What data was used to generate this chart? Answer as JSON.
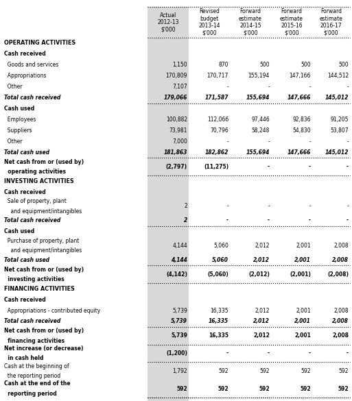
{
  "rows": [
    {
      "label": "OPERATING ACTIVITIES",
      "values": [
        "",
        "",
        "",
        "",
        ""
      ],
      "style": "section_bold"
    },
    {
      "label": "Cash received",
      "values": [
        "",
        "",
        "",
        "",
        ""
      ],
      "style": "subsection_bold"
    },
    {
      "label": "  Goods and services",
      "values": [
        "1,150",
        "870",
        "500",
        "500",
        "500"
      ],
      "style": "normal"
    },
    {
      "label": "  Appropriations",
      "values": [
        "170,809",
        "170,717",
        "155,194",
        "147,166",
        "144,512"
      ],
      "style": "normal"
    },
    {
      "label": "  Other",
      "values": [
        "7,107",
        "-",
        "-",
        "-",
        "-"
      ],
      "style": "normal"
    },
    {
      "label": "Total cash received",
      "values": [
        "179,066",
        "171,587",
        "155,694",
        "147,666",
        "145,012"
      ],
      "style": "total_bold_italic"
    },
    {
      "label": "Cash used",
      "values": [
        "",
        "",
        "",
        "",
        ""
      ],
      "style": "subsection_bold"
    },
    {
      "label": "  Employees",
      "values": [
        "100,882",
        "112,066",
        "97,446",
        "92,836",
        "91,205"
      ],
      "style": "normal"
    },
    {
      "label": "  Suppliers",
      "values": [
        "73,981",
        "70,796",
        "58,248",
        "54,830",
        "53,807"
      ],
      "style": "normal"
    },
    {
      "label": "  Other",
      "values": [
        "7,000",
        "-",
        "-",
        "-",
        "-"
      ],
      "style": "normal"
    },
    {
      "label": "Total cash used",
      "values": [
        "181,863",
        "182,862",
        "155,694",
        "147,666",
        "145,012"
      ],
      "style": "total_bold_italic"
    },
    {
      "label": "Net cash from or (used by)\n  operating activities",
      "values": [
        "(2,797)",
        "(11,275)",
        "-",
        "-",
        "-"
      ],
      "style": "net_bold"
    },
    {
      "label": "INVESTING ACTIVITIES",
      "values": [
        "",
        "",
        "",
        "",
        ""
      ],
      "style": "section_bold"
    },
    {
      "label": "Cash received",
      "values": [
        "",
        "",
        "",
        "",
        ""
      ],
      "style": "subsection_bold"
    },
    {
      "label": "  Sale of property, plant\n    and equipment/intangibles",
      "values": [
        "2",
        "-",
        "-",
        "-",
        "-"
      ],
      "style": "normal"
    },
    {
      "label": "Total cash received",
      "values": [
        "2",
        "-",
        "-",
        "-",
        "-"
      ],
      "style": "total_bold_italic"
    },
    {
      "label": "Cash used",
      "values": [
        "",
        "",
        "",
        "",
        ""
      ],
      "style": "subsection_bold"
    },
    {
      "label": "  Purchase of property, plant\n    and equipment/intangibles",
      "values": [
        "4,144",
        "5,060",
        "2,012",
        "2,001",
        "2,008"
      ],
      "style": "normal"
    },
    {
      "label": "Total cash used",
      "values": [
        "4,144",
        "5,060",
        "2,012",
        "2,001",
        "2,008"
      ],
      "style": "total_bold_italic"
    },
    {
      "label": "Net cash from or (used by)\n  investing activities",
      "values": [
        "(4,142)",
        "(5,060)",
        "(2,012)",
        "(2,001)",
        "(2,008)"
      ],
      "style": "net_bold"
    },
    {
      "label": "FINANCING ACTIVITIES",
      "values": [
        "",
        "",
        "",
        "",
        ""
      ],
      "style": "section_bold"
    },
    {
      "label": "Cash received",
      "values": [
        "",
        "",
        "",
        "",
        ""
      ],
      "style": "subsection_bold"
    },
    {
      "label": "  Appropriations - contributed equity",
      "values": [
        "5,739",
        "16,335",
        "2,012",
        "2,001",
        "2,008"
      ],
      "style": "normal"
    },
    {
      "label": "Total cash received",
      "values": [
        "5,739",
        "16,335",
        "2,012",
        "2,001",
        "2,008"
      ],
      "style": "total_bold_italic"
    },
    {
      "label": "Net cash from or (used by)\n  financing activities",
      "values": [
        "5,739",
        "16,335",
        "2,012",
        "2,001",
        "2,008"
      ],
      "style": "net_bold"
    },
    {
      "label": "Net increase (or decrease)\n  in cash held",
      "values": [
        "(1,200)",
        "-",
        "-",
        "-",
        "-"
      ],
      "style": "net_bold"
    },
    {
      "label": "Cash at the beginning of\n  the reporting period",
      "values": [
        "1,792",
        "592",
        "592",
        "592",
        "592"
      ],
      "style": "normal"
    },
    {
      "label": "Cash at the end of the\n  reporting period",
      "values": [
        "592",
        "592",
        "592",
        "592",
        "592"
      ],
      "style": "last_bold"
    }
  ],
  "col_headers": [
    "",
    "Actual\n2012-13\n$'000",
    "Revised\nbudget\n2013-14\n$'000",
    "Forward\nestimate\n2014-15\n$'000",
    "Forward\nestimate\n2015-16\n$'000",
    "Forward\nestimate\n2016-17\n$'000"
  ],
  "bg_color": "#ffffff",
  "shade_color": "#d8d8d8"
}
